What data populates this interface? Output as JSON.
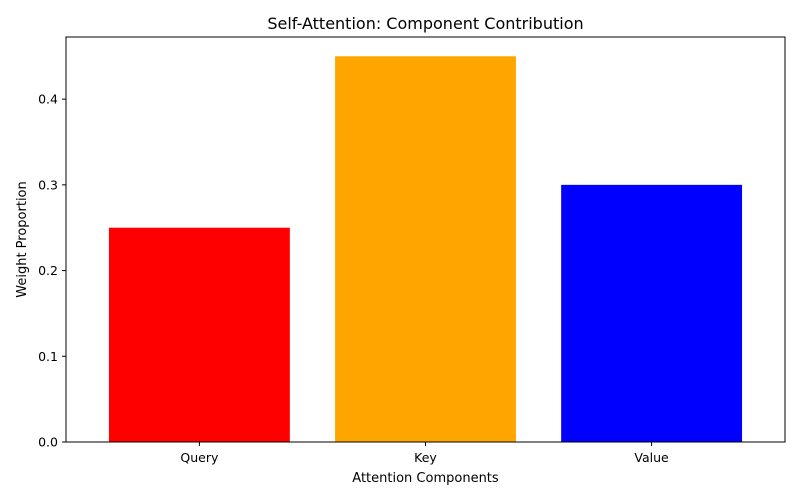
{
  "chart_data": {
    "type": "bar",
    "title": "Self-Attention: Component Contribution",
    "xlabel": "Attention Components",
    "ylabel": "Weight Proportion",
    "categories": [
      "Query",
      "Key",
      "Value"
    ],
    "values": [
      0.25,
      0.45,
      0.3
    ],
    "colors": [
      "#ff0000",
      "#ffa500",
      "#0000ff"
    ],
    "ylim": [
      0,
      0.4725
    ],
    "yticks": [
      0.0,
      0.1,
      0.2,
      0.3,
      0.4
    ],
    "ytick_labels": [
      "0.0",
      "0.1",
      "0.2",
      "0.3",
      "0.4"
    ],
    "grid": false,
    "legend": "none"
  }
}
